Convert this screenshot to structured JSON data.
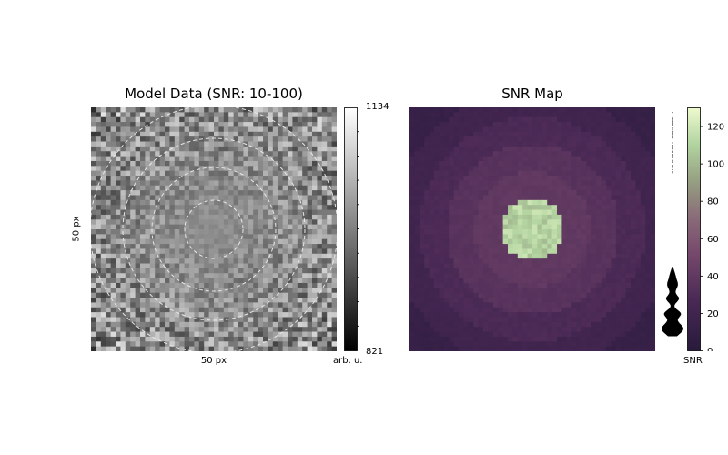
{
  "chart_data": [
    {
      "type": "heatmap",
      "title": "Model Data (SNR: 10-100)",
      "xlabel": "50 px",
      "ylabel": "50 px",
      "grid_size": [
        50,
        50
      ],
      "colormap": "gray",
      "overlay": "dashed concentric circles",
      "colorbar": {
        "label": "arb. u.",
        "tick_labels": [
          "1134",
          "821"
        ],
        "range": [
          821,
          1134
        ]
      }
    },
    {
      "type": "heatmap",
      "title": "SNR Map",
      "grid_size": [
        50,
        50
      ],
      "colormap": "purple-green",
      "description_values": {
        "center_snr": 110,
        "ring_snr": [
          40,
          35,
          28,
          20,
          12
        ]
      },
      "colorbar": {
        "label": "SNR",
        "range": [
          0,
          130
        ],
        "ticks": [
          0,
          20,
          40,
          60,
          80,
          100,
          120
        ],
        "tick_labels": [
          "0",
          "20",
          "40",
          "60",
          "80",
          "100",
          "120"
        ],
        "distribution": "violin-style histogram"
      }
    }
  ]
}
